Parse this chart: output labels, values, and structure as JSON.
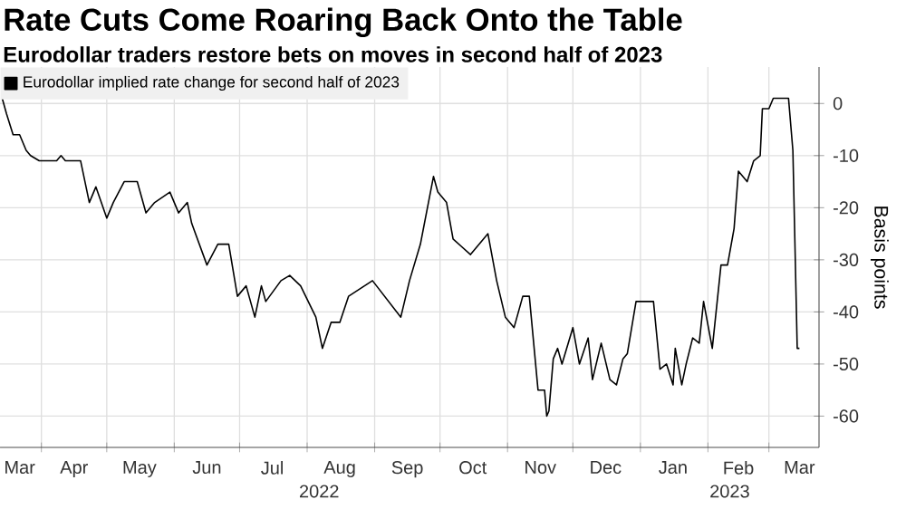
{
  "chart_data": {
    "type": "line",
    "title": "Rate Cuts Come Roaring Back Onto the Table",
    "subtitle": "Eurodollar traders restore bets on moves in second half of 2023",
    "ylabel": "Basis points",
    "x": [
      "2022-03-14",
      "2022-03-16",
      "2022-03-19",
      "2022-03-22",
      "2022-03-25",
      "2022-03-27",
      "2022-03-31",
      "2022-04-08",
      "2022-04-10",
      "2022-04-12",
      "2022-04-19",
      "2022-04-23",
      "2022-04-26",
      "2022-05-01",
      "2022-05-04",
      "2022-05-09",
      "2022-05-15",
      "2022-05-19",
      "2022-05-23",
      "2022-05-30",
      "2022-06-03",
      "2022-06-07",
      "2022-06-09",
      "2022-06-16",
      "2022-06-21",
      "2022-06-26",
      "2022-06-30",
      "2022-07-04",
      "2022-07-08",
      "2022-07-11",
      "2022-07-13",
      "2022-07-20",
      "2022-07-24",
      "2022-07-29",
      "2022-08-05",
      "2022-08-08",
      "2022-08-12",
      "2022-08-16",
      "2022-08-20",
      "2022-08-31",
      "2022-09-13",
      "2022-09-17",
      "2022-09-22",
      "2022-09-28",
      "2022-09-30",
      "2022-10-04",
      "2022-10-07",
      "2022-10-15",
      "2022-10-23",
      "2022-10-27",
      "2022-10-31",
      "2022-11-04",
      "2022-11-08",
      "2022-11-11",
      "2022-11-15",
      "2022-11-18",
      "2022-11-19",
      "2022-11-20",
      "2022-11-22",
      "2022-11-24",
      "2022-11-26",
      "2022-12-01",
      "2022-12-04",
      "2022-12-08",
      "2022-12-10",
      "2022-12-14",
      "2022-12-18",
      "2022-12-21",
      "2022-12-24",
      "2022-12-26",
      "2022-12-30",
      "2023-01-03",
      "2023-01-07",
      "2023-01-10",
      "2023-01-13",
      "2023-01-16",
      "2023-01-17",
      "2023-01-20",
      "2023-01-22",
      "2023-01-25",
      "2023-01-28",
      "2023-01-30",
      "2023-02-03",
      "2023-02-07",
      "2023-02-10",
      "2023-02-13",
      "2023-02-15",
      "2023-02-19",
      "2023-02-22",
      "2023-02-25",
      "2023-02-26",
      "2023-03-01",
      "2023-03-03",
      "2023-03-06",
      "2023-03-09",
      "2023-03-10",
      "2023-03-12",
      "2023-03-14",
      "2023-03-15"
    ],
    "series": [
      {
        "name": "Eurodollar implied rate change for second half of 2023",
        "color": "#000000",
        "values": [
          1,
          -2,
          -6,
          -6,
          -9,
          -10,
          -11,
          -11,
          -10,
          -11,
          -11,
          -19,
          -16,
          -22,
          -19,
          -15,
          -15,
          -21,
          -19,
          -17,
          -21,
          -19,
          -23,
          -31,
          -27,
          -27,
          -37,
          -35,
          -41,
          -35,
          -38,
          -34,
          -33,
          -35,
          -41,
          -47,
          -42,
          -42,
          -37,
          -34,
          -41,
          -34,
          -27,
          -14,
          -17,
          -19,
          -26,
          -29,
          -25,
          -34,
          -41,
          -43,
          -37,
          -37,
          -55,
          -55,
          -60,
          -59,
          -49,
          -47,
          -50,
          -43,
          -50,
          -45,
          -53,
          -46,
          -53,
          -54,
          -49,
          -48,
          -38,
          -38,
          -38,
          -51,
          -50,
          -54,
          -47,
          -54,
          -50,
          -45,
          -46,
          -38,
          -47,
          -31,
          -31,
          -24,
          -13,
          -15,
          -11,
          -10,
          -1,
          -1,
          1,
          1,
          1,
          1,
          -9,
          -47,
          -47
        ]
      }
    ],
    "xlim": [
      "2022-03-13",
      "2023-03-24"
    ],
    "ylim": [
      -66,
      7
    ],
    "xticks": [
      {
        "value": "2022-03-22",
        "label": "Mar"
      },
      {
        "value": "2022-04-16",
        "label": "Apr"
      },
      {
        "value": "2022-05-16",
        "label": "May"
      },
      {
        "value": "2022-06-16",
        "label": "Jun"
      },
      {
        "value": "2022-07-16",
        "label": "Jul"
      },
      {
        "value": "2022-08-16",
        "label": "Aug"
      },
      {
        "value": "2022-09-16",
        "label": "Sep"
      },
      {
        "value": "2022-10-16",
        "label": "Oct"
      },
      {
        "value": "2022-11-16",
        "label": "Nov"
      },
      {
        "value": "2022-12-16",
        "label": "Dec"
      },
      {
        "value": "2023-01-16",
        "label": "Jan"
      },
      {
        "value": "2023-02-15",
        "label": "Feb"
      },
      {
        "value": "2023-03-15",
        "label": "Mar"
      },
      {
        "value": "2022-04-01",
        "label": null
      },
      {
        "value": "2022-05-01",
        "label": null
      },
      {
        "value": "2022-06-01",
        "label": null
      },
      {
        "value": "2022-07-01",
        "label": null
      },
      {
        "value": "2022-08-01",
        "label": null
      },
      {
        "value": "2022-09-01",
        "label": null
      },
      {
        "value": "2022-10-01",
        "label": null
      },
      {
        "value": "2022-11-01",
        "label": null
      },
      {
        "value": "2022-12-01",
        "label": null
      },
      {
        "value": "2023-01-01",
        "label": null
      },
      {
        "value": "2023-02-01",
        "label": null
      },
      {
        "value": "2023-03-01",
        "label": null
      }
    ],
    "yticks": [
      0,
      -10,
      -20,
      -30,
      -40,
      -50,
      -60
    ],
    "grid": true,
    "legend": "top left",
    "annotations": [
      "2022",
      "2023"
    ]
  }
}
